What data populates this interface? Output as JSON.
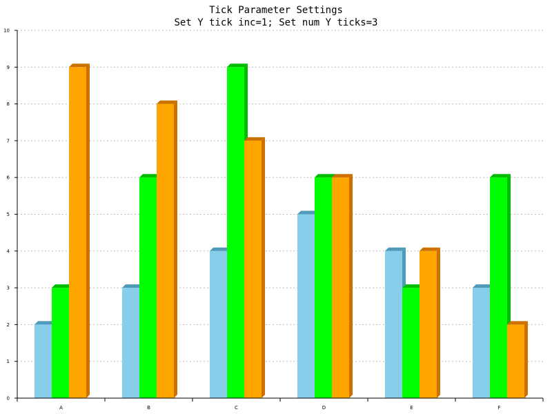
{
  "chart_data": {
    "type": "bar",
    "title": "Tick Parameter Settings",
    "subtitle": "Set Y tick inc=1; Set num Y ticks=3",
    "xlabel": "",
    "ylabel": "",
    "categories": [
      "A",
      "B",
      "C",
      "D",
      "E",
      "F"
    ],
    "series": [
      {
        "values": [
          2,
          3,
          4,
          5,
          4,
          3
        ],
        "color": "#87ceeb",
        "side_color": "#4f9ab8"
      },
      {
        "values": [
          3,
          6,
          9,
          6,
          3,
          6
        ],
        "color": "#00ff00",
        "side_color": "#00bb00"
      },
      {
        "values": [
          9,
          8,
          7,
          6,
          4,
          2
        ],
        "color": "#ffa500",
        "side_color": "#cc7000"
      }
    ],
    "ylim": [
      0,
      10
    ],
    "yticks": [
      "0",
      "1",
      "2",
      "3",
      "4",
      "5",
      "6",
      "7",
      "8",
      "9",
      "10"
    ],
    "grid": true,
    "bar_style": "3d"
  }
}
